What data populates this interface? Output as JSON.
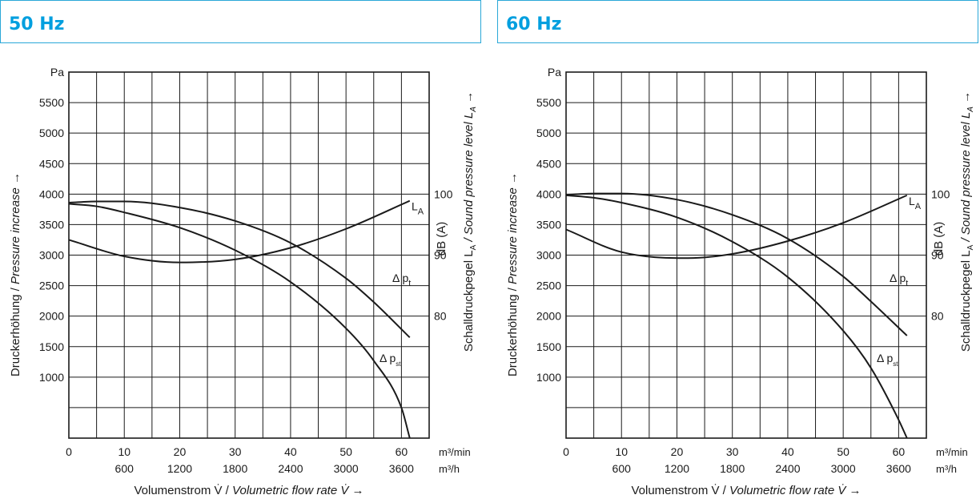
{
  "chart_data": [
    {
      "type": "line",
      "title": "50 Hz",
      "xlabel_plain": "Volumenstrom V̇ / ",
      "xlabel_italic": "Volumetric flow rate V̇",
      "xlabel_arrow": "→",
      "ylabel_plain": "Druckerhöhung / ",
      "ylabel_italic": "Pressure increase",
      "ylabel_arrow": "→",
      "y2label_plain": "Schalldruckpegel L",
      "y2label_sub": "A",
      "y2label_italic": "  / Sound pressure level L",
      "y2label_italic_sub": "A",
      "y2label_arrow": "→",
      "y2unit": "dB (A)",
      "y_unit": "Pa",
      "x_unit1": "m³/min",
      "x_unit2": "m³/h",
      "xlim": [
        0,
        65
      ],
      "ylim": [
        0,
        6000
      ],
      "y2lim": [
        60,
        120
      ],
      "x_ticks": [
        "0",
        "10",
        "20",
        "30",
        "40",
        "50",
        "60"
      ],
      "x2_ticks": [
        "600",
        "1200",
        "1800",
        "2400",
        "3000",
        "3600"
      ],
      "y_ticks": [
        "1000",
        "1500",
        "2000",
        "2500",
        "3000",
        "3500",
        "4000",
        "4500",
        "5000",
        "5500"
      ],
      "y2_ticks": [
        "80",
        "90",
        "100"
      ],
      "grid": true,
      "series": [
        {
          "name": "L_A",
          "label": "L",
          "label_sub": "A",
          "axis": "y2",
          "x": [
            0,
            10,
            20,
            30,
            40,
            50,
            61.5
          ],
          "y": [
            92.5,
            89.8,
            88.8,
            89.3,
            91.2,
            94.3,
            98.9
          ]
        },
        {
          "name": "Δ p_t",
          "label": "Δ p",
          "label_sub": "t",
          "axis": "y",
          "x": [
            0,
            5,
            10,
            20,
            30,
            40,
            50,
            55,
            61.5
          ],
          "y": [
            3860,
            3880,
            3880,
            3780,
            3560,
            3200,
            2620,
            2230,
            1650
          ]
        },
        {
          "name": "Δ p_st",
          "label": "Δ p",
          "label_sub": "st",
          "axis": "y",
          "x": [
            0,
            5,
            10,
            20,
            30,
            40,
            50,
            55,
            60,
            61.5
          ],
          "y": [
            3840,
            3800,
            3700,
            3450,
            3080,
            2560,
            1800,
            1270,
            500,
            0
          ]
        }
      ]
    },
    {
      "type": "line",
      "title": "60 Hz",
      "xlabel_plain": "Volumenstrom V̇ / ",
      "xlabel_italic": "Volumetric flow rate V̇",
      "xlabel_arrow": "→",
      "ylabel_plain": "Druckerhöhung / ",
      "ylabel_italic": "Pressure increase",
      "ylabel_arrow": "→",
      "y2label_plain": "Schalldruckpegel L",
      "y2label_sub": "A",
      "y2label_italic": "  / Sound pressure level L",
      "y2label_italic_sub": "A",
      "y2label_arrow": "→",
      "y2unit": "dB (A)",
      "y_unit": "Pa",
      "x_unit1": "m³/min",
      "x_unit2": "m³/h",
      "xlim": [
        0,
        65
      ],
      "ylim": [
        0,
        6000
      ],
      "y2lim": [
        60,
        120
      ],
      "x_ticks": [
        "0",
        "10",
        "20",
        "30",
        "40",
        "50",
        "60"
      ],
      "x2_ticks": [
        "600",
        "1200",
        "1800",
        "2400",
        "3000",
        "3600"
      ],
      "y_ticks": [
        "1000",
        "1500",
        "2000",
        "2500",
        "3000",
        "3500",
        "4000",
        "4500",
        "5000",
        "5500"
      ],
      "y2_ticks": [
        "80",
        "90",
        "100"
      ],
      "grid": true,
      "series": [
        {
          "name": "L_A",
          "label": "L",
          "label_sub": "A",
          "axis": "y2",
          "x": [
            0,
            10,
            22,
            30,
            40,
            50,
            61.5
          ],
          "y": [
            94.2,
            90.5,
            89.5,
            90.2,
            92.3,
            95.3,
            99.8
          ]
        },
        {
          "name": "Δ p_t",
          "label": "Δ p",
          "label_sub": "t",
          "axis": "y",
          "x": [
            0,
            5,
            10,
            20,
            30,
            40,
            50,
            55,
            61.5
          ],
          "y": [
            3990,
            4010,
            4010,
            3910,
            3660,
            3270,
            2650,
            2240,
            1680
          ]
        },
        {
          "name": "Δ p_st",
          "label": "Δ p",
          "label_sub": "st",
          "axis": "y",
          "x": [
            0,
            5,
            10,
            20,
            30,
            40,
            50,
            55,
            60,
            61.5
          ],
          "y": [
            3980,
            3940,
            3860,
            3620,
            3220,
            2640,
            1760,
            1150,
            300,
            0
          ]
        }
      ]
    }
  ]
}
